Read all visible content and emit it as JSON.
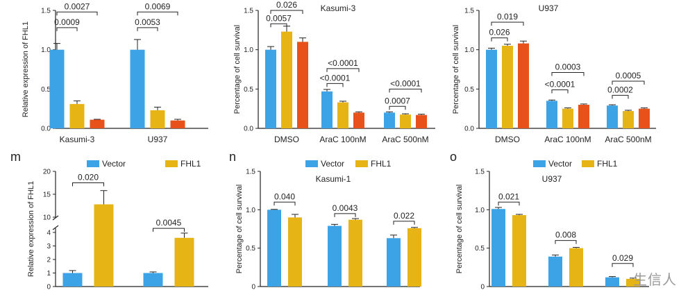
{
  "colors": {
    "blue": "#3ba3e6",
    "yellow": "#e7b416",
    "orange": "#e8511a",
    "axis": "#222222"
  },
  "watermark": "生信人",
  "chart_data": [
    {
      "id": "top-left",
      "type": "bar",
      "title": "",
      "panel_label": "",
      "ylabel": "Relative expression of FHL1",
      "ylim": [
        0,
        1.5
      ],
      "yticks": [
        0.0,
        0.5,
        1.0,
        1.5
      ],
      "ytick_labels": [
        "0.0",
        "0.5",
        "1.0",
        "1.5"
      ],
      "categories": [
        "Kasumi-3",
        "U937"
      ],
      "series": [
        {
          "color": "blue",
          "values": [
            1.0,
            1.0
          ],
          "err": [
            0.08,
            0.13
          ]
        },
        {
          "color": "yellow",
          "values": [
            0.31,
            0.23
          ],
          "err": [
            0.04,
            0.04
          ]
        },
        {
          "color": "orange",
          "values": [
            0.11,
            0.1
          ],
          "err": [
            0.005,
            0.015
          ]
        }
      ],
      "brackets": [
        {
          "group": 0,
          "from": 0,
          "to": 1,
          "y": 1.28,
          "label": "0.0009"
        },
        {
          "group": 0,
          "from": 0,
          "to": 2,
          "y": 1.48,
          "label": "0.0027"
        },
        {
          "group": 1,
          "from": 0,
          "to": 1,
          "y": 1.28,
          "label": "0.0053"
        },
        {
          "group": 1,
          "from": 0,
          "to": 2,
          "y": 1.48,
          "label": "0.0069"
        }
      ]
    },
    {
      "id": "top-middle",
      "type": "bar",
      "title": "Kasumi-3",
      "panel_label": "",
      "ylabel": "Percentage of cell survival",
      "ylim": [
        0,
        1.5
      ],
      "yticks": [
        0.0,
        0.5,
        1.0,
        1.5
      ],
      "ytick_labels": [
        "0.0",
        "0.5",
        "1.0",
        "1.5"
      ],
      "categories": [
        "DMSO",
        "AraC 100nM",
        "AraC 500nM"
      ],
      "series": [
        {
          "color": "blue",
          "values": [
            1.0,
            0.47,
            0.2
          ],
          "err": [
            0.04,
            0.025,
            0.01
          ]
        },
        {
          "color": "yellow",
          "values": [
            1.23,
            0.33,
            0.175
          ],
          "err": [
            0.07,
            0.015,
            0.01
          ]
        },
        {
          "color": "orange",
          "values": [
            1.1,
            0.2,
            0.17
          ],
          "err": [
            0.05,
            0.01,
            0.01
          ]
        }
      ],
      "brackets": [
        {
          "group": 0,
          "from": 0,
          "to": 1,
          "y": 1.33,
          "label": "0.0057"
        },
        {
          "group": 0,
          "from": 0,
          "to": 2,
          "y": 1.5,
          "label": "0.026"
        },
        {
          "group": 1,
          "from": 0,
          "to": 1,
          "y": 0.57,
          "label": "<0.0001"
        },
        {
          "group": 1,
          "from": 0,
          "to": 2,
          "y": 0.76,
          "label": "<0.0001"
        },
        {
          "group": 2,
          "from": 0,
          "to": 1,
          "y": 0.28,
          "label": "0.0007"
        },
        {
          "group": 2,
          "from": 0,
          "to": 2,
          "y": 0.5,
          "label": "<0.0001"
        }
      ]
    },
    {
      "id": "top-right",
      "type": "bar",
      "title": "U937",
      "panel_label": "",
      "ylabel": "Percentage of cell survival",
      "ylim": [
        0,
        1.5
      ],
      "yticks": [
        0.0,
        0.5,
        1.0,
        1.5
      ],
      "ytick_labels": [
        "0.0",
        "0.5",
        "1.0",
        "1.5"
      ],
      "categories": [
        "DMSO",
        "AraC 100nM",
        "AraC 500nM"
      ],
      "series": [
        {
          "color": "blue",
          "values": [
            1.0,
            0.35,
            0.29
          ],
          "err": [
            0.02,
            0.01,
            0.01
          ]
        },
        {
          "color": "yellow",
          "values": [
            1.05,
            0.25,
            0.22
          ],
          "err": [
            0.02,
            0.01,
            0.01
          ]
        },
        {
          "color": "orange",
          "values": [
            1.08,
            0.3,
            0.25
          ],
          "err": [
            0.03,
            0.01,
            0.01
          ]
        }
      ],
      "brackets": [
        {
          "group": 0,
          "from": 0,
          "to": 1,
          "y": 1.15,
          "label": "0.026"
        },
        {
          "group": 0,
          "from": 0,
          "to": 2,
          "y": 1.35,
          "label": "0.019"
        },
        {
          "group": 1,
          "from": 0,
          "to": 1,
          "y": 0.49,
          "label": "<0.0001"
        },
        {
          "group": 1,
          "from": 0,
          "to": 2,
          "y": 0.71,
          "label": "0.0003"
        },
        {
          "group": 2,
          "from": 0,
          "to": 1,
          "y": 0.42,
          "label": "0.0002"
        },
        {
          "group": 2,
          "from": 0,
          "to": 2,
          "y": 0.6,
          "label": "0.0005"
        }
      ]
    },
    {
      "id": "m",
      "type": "bar",
      "title": "",
      "panel_label": "m",
      "legend": [
        "Vector",
        "FHL1"
      ],
      "ylabel": "Relative expression of FHL1",
      "ylim": [
        0,
        20
      ],
      "axis_break": [
        4,
        10
      ],
      "yticks": [
        0,
        1,
        2,
        3,
        4,
        10,
        15,
        20
      ],
      "ytick_labels": [
        "0",
        "1",
        "2",
        "3",
        "4",
        "10",
        "15",
        "20"
      ],
      "categories": [
        "",
        ""
      ],
      "series": [
        {
          "color": "blue",
          "values": [
            1.0,
            1.0
          ],
          "err": [
            0.18,
            0.08
          ]
        },
        {
          "color": "yellow",
          "values": [
            12.8,
            3.6
          ],
          "err": [
            3.0,
            0.35
          ]
        }
      ],
      "brackets": [
        {
          "group": 0,
          "from": 0,
          "to": 1,
          "y": 17.5,
          "label": "0.020"
        },
        {
          "group": 1,
          "from": 0,
          "to": 1,
          "y": 4.5,
          "label": "0.0045"
        }
      ]
    },
    {
      "id": "n",
      "type": "bar",
      "title": "Kasumi-1",
      "panel_label": "n",
      "legend": [
        "Vector",
        "FHL1"
      ],
      "ylabel": "Percentage of cell survival",
      "ylim": [
        0,
        1.5
      ],
      "yticks": [
        0.0,
        0.5,
        1.0,
        1.5
      ],
      "ytick_labels": [
        "0",
        "0.5",
        "1.0",
        "1.5"
      ],
      "categories": [
        "",
        "",
        ""
      ],
      "series": [
        {
          "color": "blue",
          "values": [
            1.0,
            0.79,
            0.63
          ],
          "err": [
            0.005,
            0.02,
            0.04
          ]
        },
        {
          "color": "yellow",
          "values": [
            0.9,
            0.87,
            0.76
          ],
          "err": [
            0.04,
            0.015,
            0.01
          ]
        }
      ],
      "brackets": [
        {
          "group": 0,
          "from": 0,
          "to": 1,
          "y": 1.1,
          "label": "0.040"
        },
        {
          "group": 1,
          "from": 0,
          "to": 1,
          "y": 0.95,
          "label": "0.0043"
        },
        {
          "group": 2,
          "from": 0,
          "to": 1,
          "y": 0.85,
          "label": "0.022"
        }
      ]
    },
    {
      "id": "o",
      "type": "bar",
      "title": "U937",
      "panel_label": "o",
      "legend": [
        "Vector",
        "FHL1"
      ],
      "ylabel": "Percentage of cell survival",
      "ylim": [
        0,
        1.5
      ],
      "yticks": [
        0.0,
        0.5,
        1.0,
        1.5
      ],
      "ytick_labels": [
        "0",
        "0.5",
        "1.0",
        "1.5"
      ],
      "categories": [
        "",
        "",
        ""
      ],
      "series": [
        {
          "color": "blue",
          "values": [
            1.01,
            0.39,
            0.12
          ],
          "err": [
            0.02,
            0.02,
            0.01
          ]
        },
        {
          "color": "yellow",
          "values": [
            0.93,
            0.5,
            0.1
          ],
          "err": [
            0.01,
            0.01,
            0.01
          ]
        }
      ],
      "brackets": [
        {
          "group": 0,
          "from": 0,
          "to": 1,
          "y": 1.1,
          "label": "0.021"
        },
        {
          "group": 1,
          "from": 0,
          "to": 1,
          "y": 0.6,
          "label": "0.008"
        },
        {
          "group": 2,
          "from": 0,
          "to": 1,
          "y": 0.3,
          "label": "0.029"
        }
      ]
    }
  ]
}
